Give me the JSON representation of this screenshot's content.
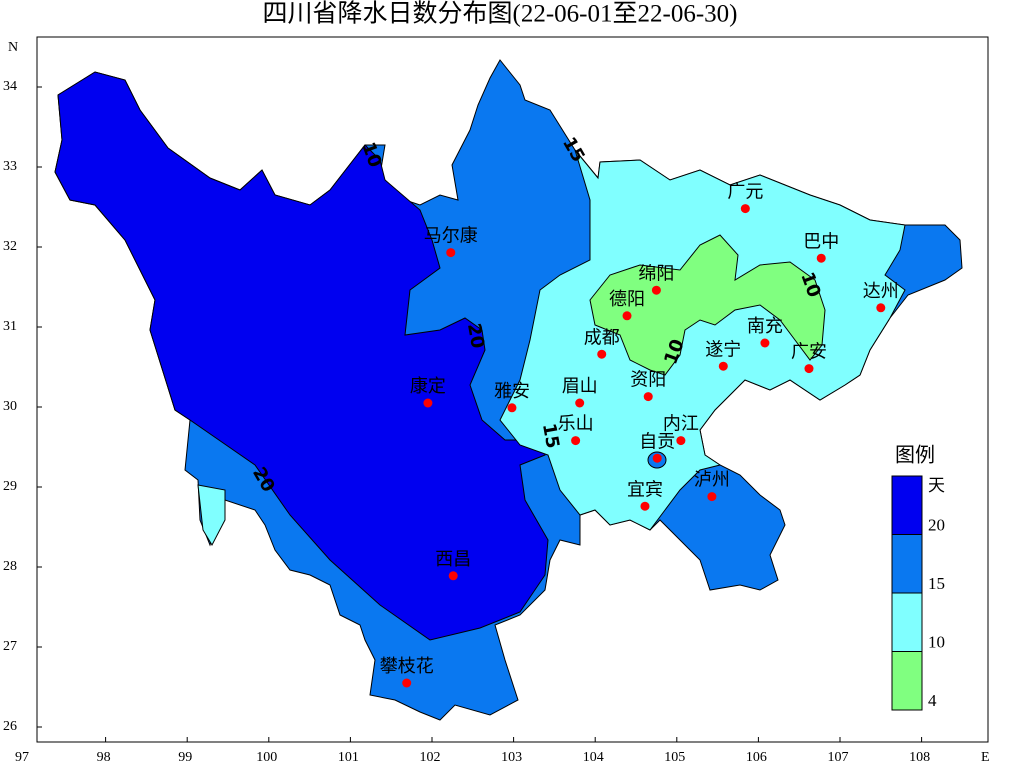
{
  "header": {
    "title": "四川省降水日数分布图(22-06-01至22-06-30)"
  },
  "map": {
    "x_axis_label": "E",
    "y_axis_label": "N",
    "xticks": [
      97,
      98,
      99,
      100,
      101,
      102,
      103,
      104,
      105,
      106,
      107,
      108
    ],
    "yticks": [
      26,
      27,
      28,
      29,
      30,
      31,
      32,
      33,
      34
    ],
    "cities": [
      {
        "name": "马尔康",
        "lon": 102.23,
        "lat": 31.93
      },
      {
        "name": "广元",
        "lon": 105.84,
        "lat": 32.48
      },
      {
        "name": "巴中",
        "lon": 106.77,
        "lat": 31.86
      },
      {
        "name": "绵阳",
        "lon": 104.75,
        "lat": 31.46
      },
      {
        "name": "德阳",
        "lon": 104.39,
        "lat": 31.14
      },
      {
        "name": "达州",
        "lon": 107.5,
        "lat": 31.24
      },
      {
        "name": "南充",
        "lon": 106.08,
        "lat": 30.8
      },
      {
        "name": "遂宁",
        "lon": 105.57,
        "lat": 30.51
      },
      {
        "name": "成都",
        "lon": 104.08,
        "lat": 30.66
      },
      {
        "name": "广安",
        "lon": 106.62,
        "lat": 30.48
      },
      {
        "name": "雅安",
        "lon": 102.98,
        "lat": 29.99
      },
      {
        "name": "康定",
        "lon": 101.95,
        "lat": 30.05
      },
      {
        "name": "眉山",
        "lon": 103.81,
        "lat": 30.05
      },
      {
        "name": "资阳",
        "lon": 104.65,
        "lat": 30.13
      },
      {
        "name": "乐山",
        "lon": 103.76,
        "lat": 29.58
      },
      {
        "name": "内江",
        "lon": 105.05,
        "lat": 29.58
      },
      {
        "name": "自贡",
        "lon": 104.76,
        "lat": 29.36
      },
      {
        "name": "宜宾",
        "lon": 104.61,
        "lat": 28.76
      },
      {
        "name": "泸州",
        "lon": 105.43,
        "lat": 28.88
      },
      {
        "name": "西昌",
        "lon": 102.26,
        "lat": 27.89
      },
      {
        "name": "攀枝花",
        "lon": 101.69,
        "lat": 26.55
      }
    ],
    "contour_labels": [
      "10",
      "15",
      "20",
      "15",
      "20",
      "10",
      "10"
    ]
  },
  "legend": {
    "title": "图例",
    "unit": "天",
    "breaks": [
      20,
      15,
      10,
      4
    ],
    "colors": [
      "#0000f0",
      "#0a78f0",
      "#80ffff",
      "#80ff80"
    ]
  }
}
